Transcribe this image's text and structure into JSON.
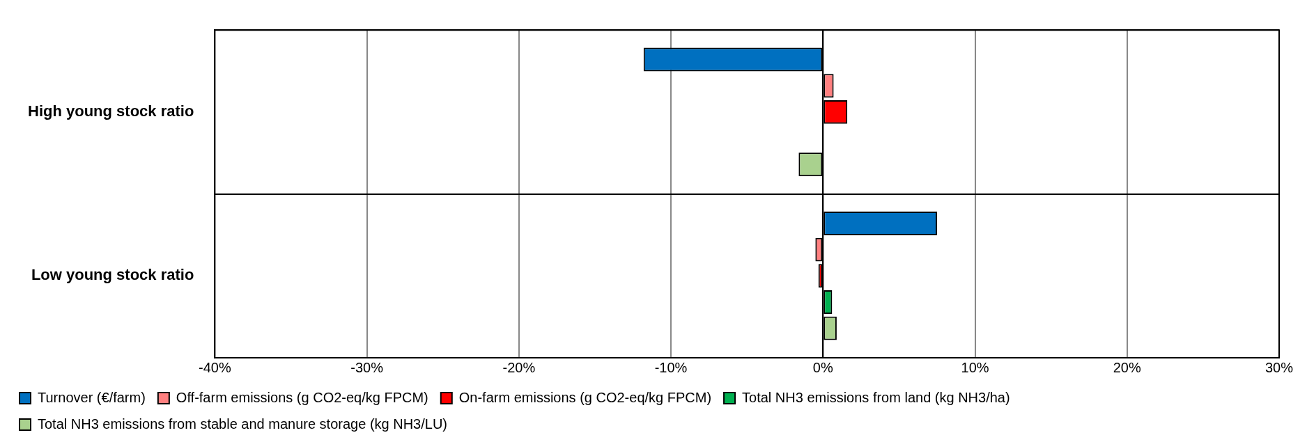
{
  "chart_data": {
    "type": "bar",
    "orientation": "horizontal",
    "categories": [
      "High young stock ratio",
      "Low young stock ratio"
    ],
    "series": [
      {
        "name": "Turnover (€/farm)",
        "color": "#0070c0",
        "values": [
          -11.8,
          7.5
        ]
      },
      {
        "name": "Off-farm emissions (g CO2-eq/kg FPCM)",
        "color": "#ff8080",
        "values": [
          0.7,
          -0.5
        ]
      },
      {
        "name": "On-farm emissions (g CO2-eq/kg FPCM)",
        "color": "#ff0000",
        "values": [
          1.6,
          -0.3
        ]
      },
      {
        "name": "Total NH3 emissions from land (kg NH3/ha)",
        "color": "#00b050",
        "values": [
          null,
          0.6
        ]
      },
      {
        "name": "Total NH3 emissions from stable and manure storage (kg NH3/LU)",
        "color": "#a9d18e",
        "values": [
          -1.6,
          0.9
        ]
      }
    ],
    "xlim": [
      -40,
      30
    ],
    "xticks": [
      {
        "value": -40,
        "label": "-40%"
      },
      {
        "value": -30,
        "label": "-30%"
      },
      {
        "value": -20,
        "label": "-20%"
      },
      {
        "value": -10,
        "label": "-10%"
      },
      {
        "value": 0,
        "label": "0%"
      },
      {
        "value": 10,
        "label": "10%"
      },
      {
        "value": 20,
        "label": "20%"
      },
      {
        "value": 30,
        "label": "30%"
      }
    ],
    "grid": "x",
    "legend": "bottom"
  }
}
